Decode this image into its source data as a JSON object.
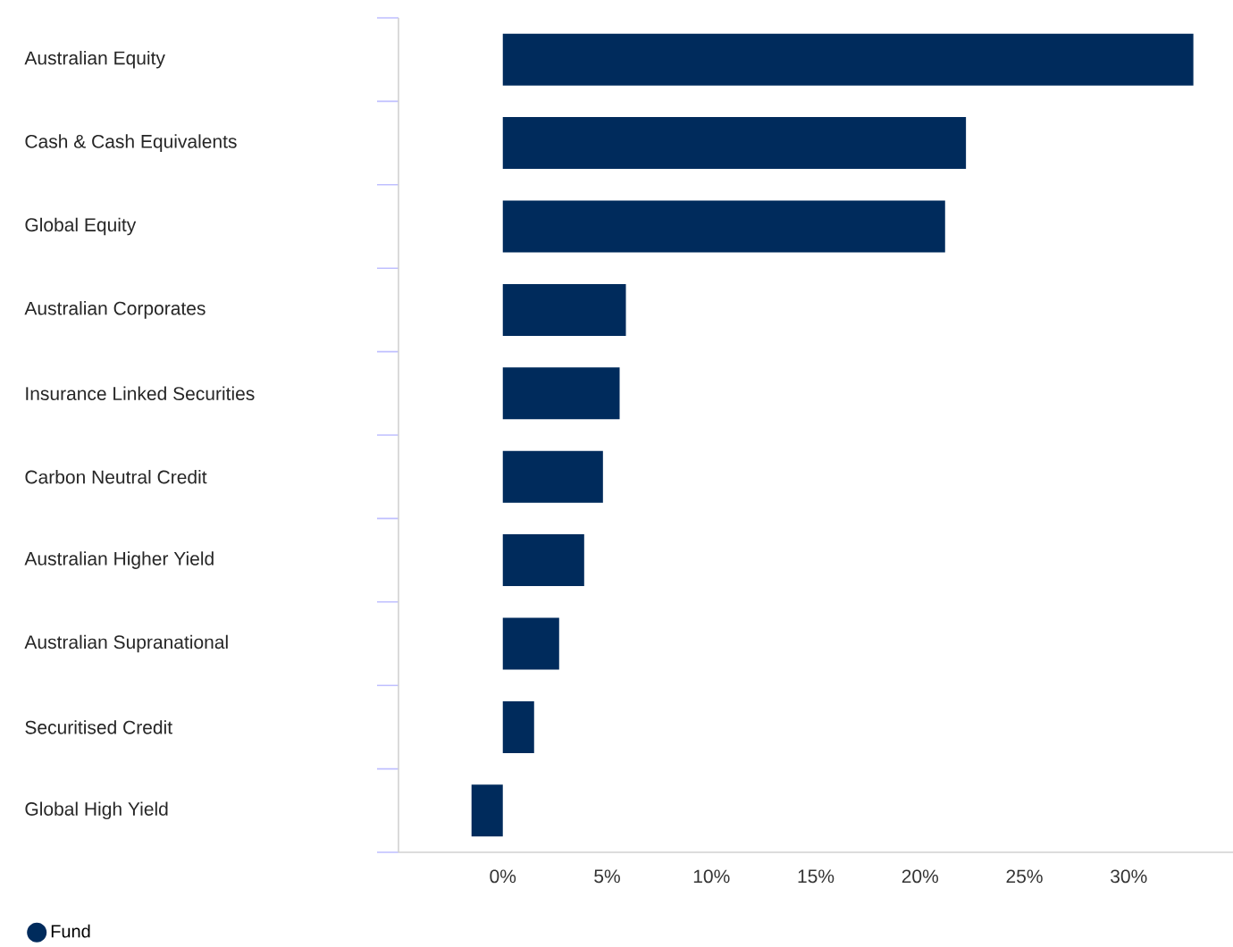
{
  "chart_data": {
    "type": "bar",
    "orientation": "horizontal",
    "categories": [
      "Australian Equity",
      "Cash & Cash Equivalents",
      "Global Equity",
      "Australian Corporates",
      "Insurance Linked Securities",
      "Carbon Neutral Credit",
      "Australian Higher Yield",
      "Australian Supranational",
      "Securitised Credit",
      "Global High Yield"
    ],
    "series": [
      {
        "name": "Fund",
        "color": "#002b5c",
        "values": [
          33.1,
          22.2,
          21.2,
          5.9,
          5.6,
          4.8,
          3.9,
          2.7,
          1.5,
          -1.5
        ]
      }
    ],
    "xlim": [
      -5,
      35
    ],
    "xticks": [
      {
        "value": 0,
        "label": "0%"
      },
      {
        "value": 5,
        "label": "5%"
      },
      {
        "value": 10,
        "label": "10%"
      },
      {
        "value": 15,
        "label": "15%"
      },
      {
        "value": 20,
        "label": "20%"
      },
      {
        "value": 25,
        "label": "25%"
      },
      {
        "value": 30,
        "label": "30%"
      }
    ],
    "grid": false,
    "legend": "bottom left"
  }
}
